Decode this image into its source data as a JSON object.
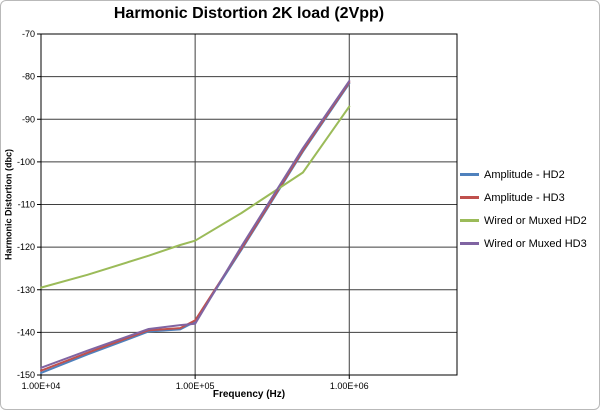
{
  "chart_data": {
    "type": "line",
    "title": "Harmonic Distortion 2K load (2Vpp)",
    "xlabel": "Frequency (Hz)",
    "ylabel": "Harmonic Distortion (dbc)",
    "x_scale": "log",
    "xlim": [
      10000,
      5000000
    ],
    "ylim": [
      -150,
      -70
    ],
    "grid": {
      "horizontal_major": true,
      "vertical_major": true
    },
    "legend_position": "right",
    "y_ticks": [
      -70,
      -80,
      -90,
      -100,
      -110,
      -120,
      -130,
      -140,
      -150
    ],
    "x_ticks": [
      {
        "value": 10000,
        "label": "1.00E+04"
      },
      {
        "value": 100000,
        "label": "1.00E+05"
      },
      {
        "value": 1000000,
        "label": "1.00E+06"
      }
    ],
    "x": [
      10000,
      20000,
      50000,
      80000,
      100000,
      200000,
      500000,
      1000000
    ],
    "series": [
      {
        "name": "Amplitude - HD2",
        "color": "#4F81BD",
        "values": [
          -149.5,
          -145.2,
          -139.8,
          -139.3,
          -137.5,
          -120.6,
          -97.6,
          -81.6
        ]
      },
      {
        "name": "Amplitude - HD3",
        "color": "#C0504D",
        "values": [
          -149.0,
          -144.8,
          -139.5,
          -139.0,
          -137.2,
          -120.3,
          -97.3,
          -81.3
        ]
      },
      {
        "name": "Wired or Muxed HD2",
        "color": "#9BBB59",
        "values": [
          -129.5,
          -126.5,
          -122.0,
          -119.5,
          -118.5,
          -112.0,
          -102.5,
          -87.0
        ]
      },
      {
        "name": "Wired or Muxed HD3",
        "color": "#8064A2",
        "values": [
          -148.3,
          -144.3,
          -139.2,
          -138.3,
          -138.0,
          -119.8,
          -96.8,
          -81.0
        ]
      }
    ]
  }
}
